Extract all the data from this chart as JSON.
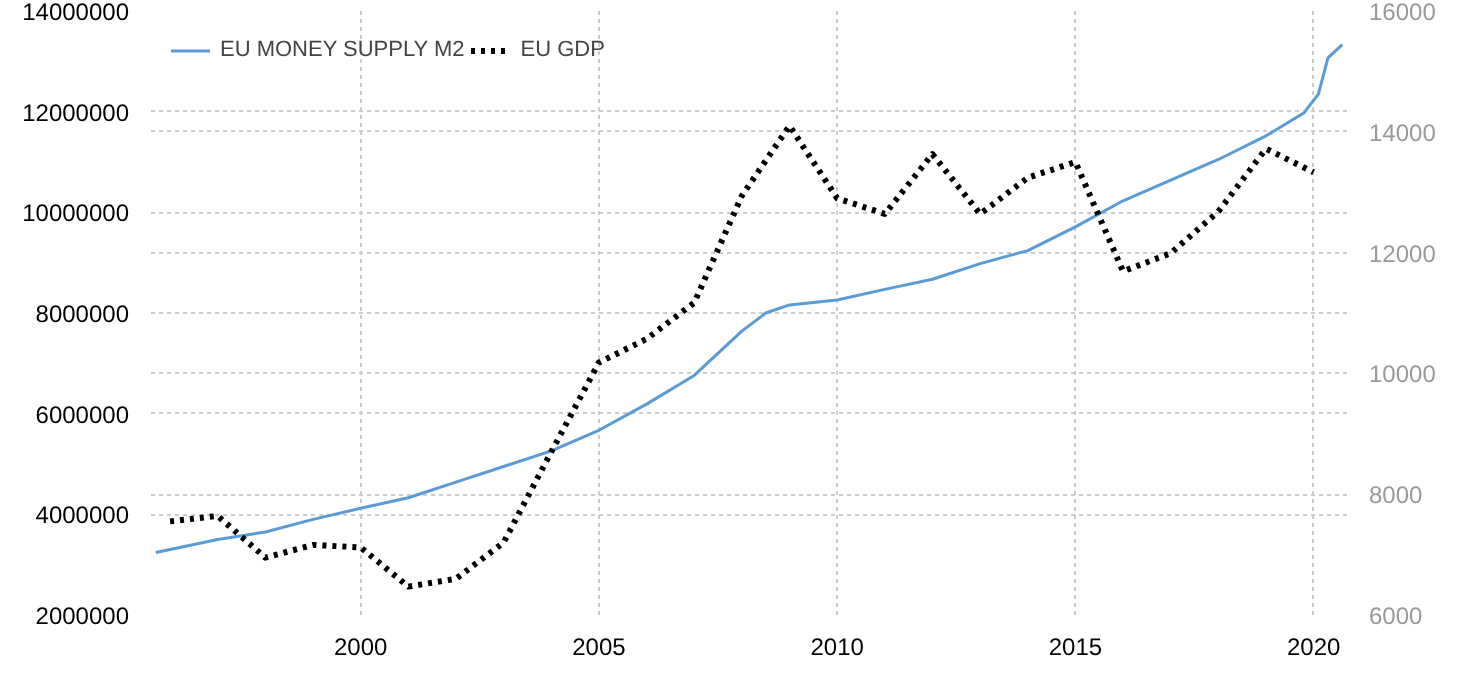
{
  "chart_data": {
    "type": "line",
    "xlim": [
      1995.6,
      2020.7
    ],
    "xticks": [
      2000,
      2005,
      2010,
      2015,
      2020
    ],
    "ylim": [
      2000000,
      14000000
    ],
    "yticks": [
      2000000,
      4000000,
      6000000,
      8000000,
      10000000,
      12000000,
      14000000
    ],
    "y2lim": [
      6000,
      16000
    ],
    "y2ticks": [
      6000,
      8000,
      10000,
      12000,
      14000,
      16000
    ],
    "grid": true,
    "legend": "top left",
    "series": [
      {
        "name": "EU MONEY SUPPLY M2",
        "color": "#5b9bd5",
        "line_style": "solid",
        "x": [
          1995.7,
          1997,
          1998,
          1999,
          2000,
          2001,
          2002,
          2003,
          2004,
          2005,
          2006,
          2007,
          2008,
          2008.5,
          2009,
          2010,
          2011,
          2012,
          2013,
          2014,
          2015,
          2016,
          2017,
          2018,
          2019,
          2019.8,
          2020.1,
          2020.3,
          2020.6
        ],
        "values": [
          3240000,
          3500000,
          3650000,
          3900000,
          4120000,
          4330000,
          4640000,
          4950000,
          5260000,
          5670000,
          6190000,
          6760000,
          7640000,
          8000000,
          8160000,
          8260000,
          8470000,
          8670000,
          8980000,
          9240000,
          9710000,
          10230000,
          10640000,
          11050000,
          11520000,
          11980000,
          12350000,
          13070000,
          13330000
        ]
      },
      {
        "name": "EU GDP",
        "color": "#000000",
        "line_style": "dotted",
        "axis": "y2",
        "x": [
          1996,
          1997,
          1998,
          1999,
          2000,
          2001,
          2002,
          2003,
          2004,
          2005,
          2006,
          2007,
          2008,
          2009,
          2010,
          2011,
          2012,
          2013,
          2014,
          2015,
          2016,
          2017,
          2018,
          2019,
          2020
        ],
        "values": [
          7550,
          7640,
          6950,
          7160,
          7120,
          6470,
          6600,
          7200,
          8700,
          10180,
          10570,
          11170,
          12940,
          14100,
          12900,
          12640,
          13630,
          12640,
          13240,
          13500,
          11690,
          11990,
          12680,
          13720,
          13330
        ]
      }
    ]
  }
}
